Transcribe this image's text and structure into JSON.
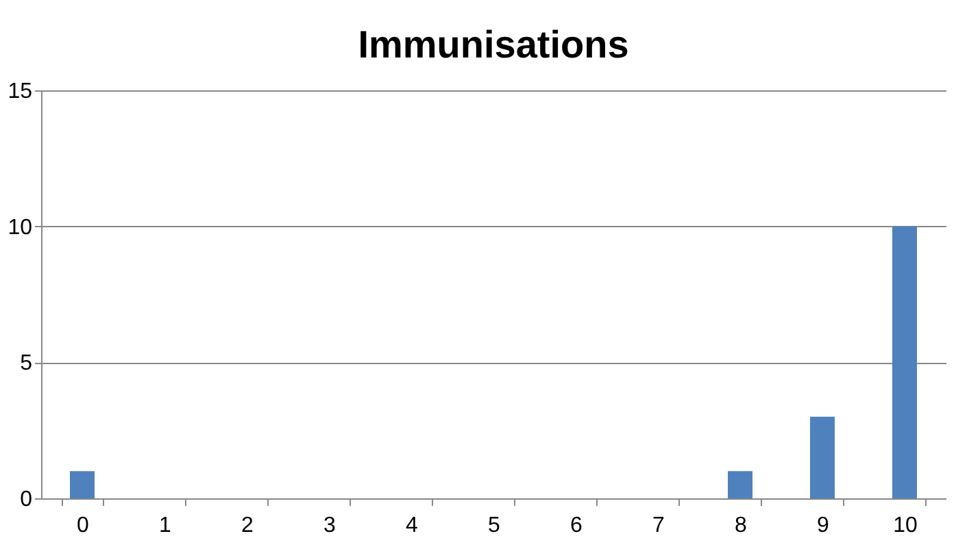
{
  "chart_data": {
    "type": "bar",
    "title": "Immunisations",
    "categories": [
      "0",
      "1",
      "2",
      "3",
      "4",
      "5",
      "6",
      "7",
      "8",
      "9",
      "10"
    ],
    "values": [
      1,
      0,
      0,
      0,
      0,
      0,
      0,
      0,
      1,
      3,
      10
    ],
    "color": "#4f81bd",
    "ylim": [
      0,
      15
    ],
    "yticks": [
      0,
      5,
      10,
      15
    ],
    "grid": "y"
  }
}
